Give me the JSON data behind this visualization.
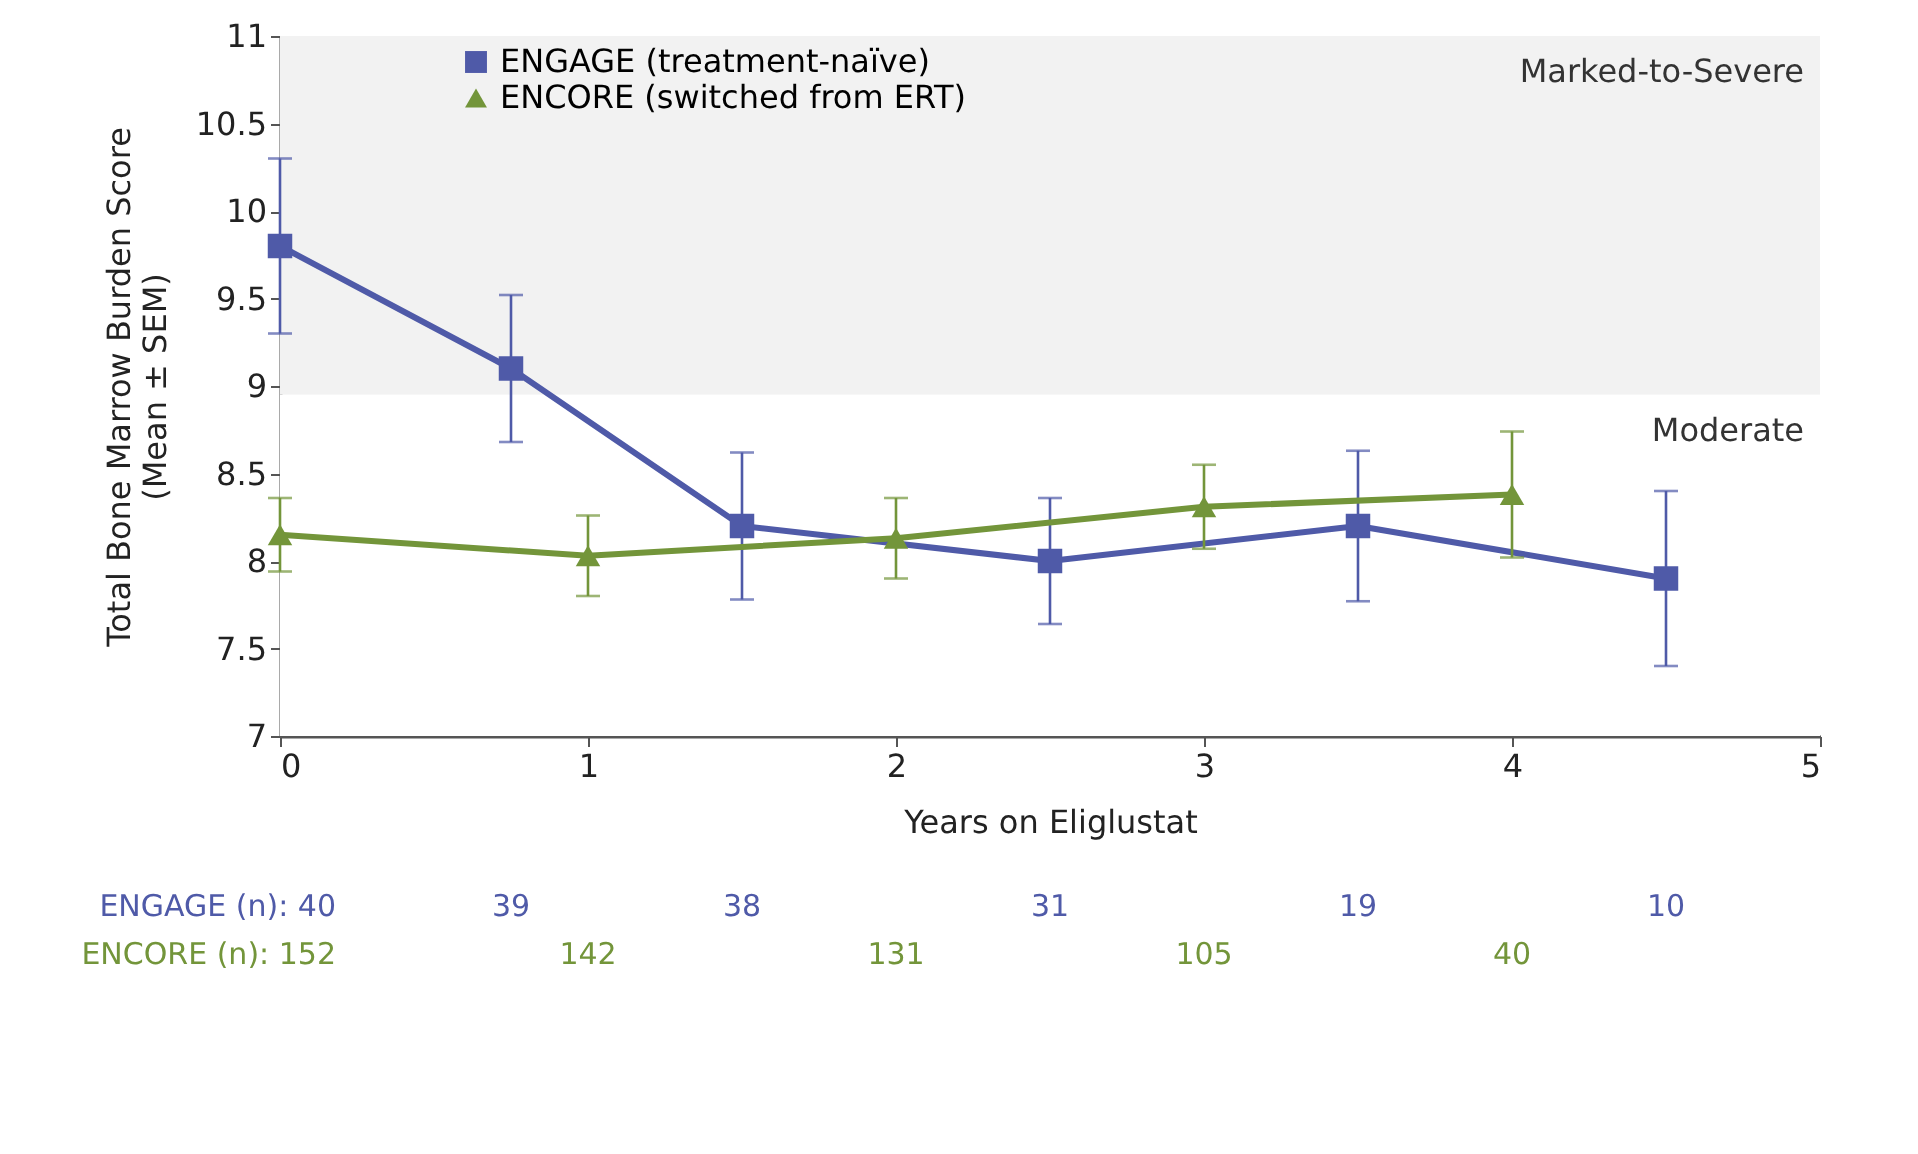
{
  "chart_data": {
    "type": "line",
    "xlabel": "Years on Eliglustat",
    "ylabel": "Total Bone Marrow Burden Score\n(Mean ± SEM)",
    "xlim": [
      0,
      5
    ],
    "xticks": [
      0,
      1,
      2,
      3,
      4,
      5
    ],
    "ylim": [
      7,
      11
    ],
    "yticks": [
      7,
      7.5,
      8,
      8.5,
      9,
      9.5,
      10,
      10.5,
      11
    ],
    "grid": false,
    "legend": "top left",
    "line_style": "solid",
    "series": [
      {
        "name": "ENGAGE (treatment-naïve)",
        "color": "#4f5aa8",
        "marker": "square",
        "x": [
          0,
          0.75,
          1.5,
          2.5,
          3.5,
          4.5
        ],
        "values": [
          9.8,
          9.1,
          8.2,
          8.0,
          8.2,
          7.9
        ],
        "errors": [
          0.5,
          0.42,
          0.42,
          0.36,
          0.43,
          0.5
        ]
      },
      {
        "name": "ENCORE (switched from ERT)",
        "color": "#73953a",
        "marker": "triangle",
        "x": [
          0,
          1,
          2,
          3,
          4
        ],
        "values": [
          8.15,
          8.03,
          8.13,
          8.31,
          8.38
        ],
        "errors": [
          0.21,
          0.23,
          0.23,
          0.24,
          0.36
        ]
      }
    ],
    "bands": [
      {
        "axis": "y",
        "from": 8.95,
        "to": 11,
        "label": "Marked-to-Severe",
        "color": "#f2f2f2"
      },
      {
        "axis": "y",
        "from": 7,
        "to": 8.95,
        "label": "Moderate",
        "color": "#ffffff"
      }
    ],
    "annotations": [
      "ENGAGE (n): 40",
      "39",
      "38",
      "31",
      "19",
      "10",
      "ENCORE (n): 152",
      "142",
      "131",
      "105",
      "40"
    ]
  }
}
